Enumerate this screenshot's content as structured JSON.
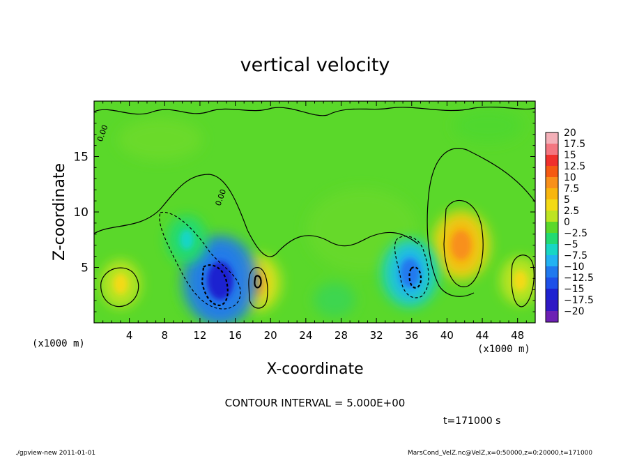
{
  "chart_data": {
    "type": "heatmap",
    "title": "vertical velocity",
    "xlabel": "X-coordinate",
    "ylabel": "Z-coordinate",
    "x_unit_label_left": "(x1000 m)",
    "x_unit_label_right": "(x1000 m)",
    "xlim": [
      0,
      50
    ],
    "ylim": [
      0,
      20
    ],
    "x_ticks": [
      4,
      8,
      12,
      16,
      20,
      24,
      28,
      32,
      36,
      40,
      44,
      48
    ],
    "y_ticks": [
      5,
      10,
      15
    ],
    "contour_interval_text": "CONTOUR INTERVAL = 5.000E+00",
    "time_text": "t=171000 s",
    "contour_labels": [
      {
        "text": "0.00",
        "x": 0.9,
        "y": 16.3
      },
      {
        "text": "0.00",
        "x": 14.3,
        "y": 10.5
      }
    ],
    "colorbar": {
      "labels": [
        "20",
        "17.5",
        "15",
        "12.5",
        "10",
        "7.5",
        "5",
        "2.5",
        "0",
        "−2.5",
        "−5",
        "−7.5",
        "−10",
        "−12.5",
        "−15",
        "−17.5",
        "−20"
      ],
      "colors": [
        "#f4b0b8",
        "#f47680",
        "#f0302c",
        "#f55a12",
        "#f8901a",
        "#f8b60e",
        "#f3da16",
        "#bde422",
        "#5ad82a",
        "#22da72",
        "#18d6c4",
        "#22b2f2",
        "#2079ee",
        "#1e50e8",
        "#1e22d0",
        "#3018c4",
        "#6d20b4"
      ]
    },
    "features": [
      {
        "kind": "updraft",
        "value": 10,
        "x": 41.6,
        "y": 7.0
      },
      {
        "kind": "updraft",
        "value": 7.5,
        "x": 18.5,
        "y": 3.6
      },
      {
        "kind": "updraft",
        "value": 5,
        "x": 3.0,
        "y": 3.5
      },
      {
        "kind": "updraft",
        "value": 5,
        "x": 48.3,
        "y": 3.8
      },
      {
        "kind": "downdraft",
        "value": -15,
        "x": 14.3,
        "y": 3.8
      },
      {
        "kind": "downdraft",
        "value": -10,
        "x": 35.8,
        "y": 4.5
      },
      {
        "kind": "downdraft",
        "value": -5,
        "x": 10.5,
        "y": 7.5
      }
    ]
  },
  "footer": {
    "left": "./gpview-new  2011-01-01",
    "right": "MarsCond_VelZ.nc@VelZ,x=0:50000,z=0:20000,t=171000"
  }
}
